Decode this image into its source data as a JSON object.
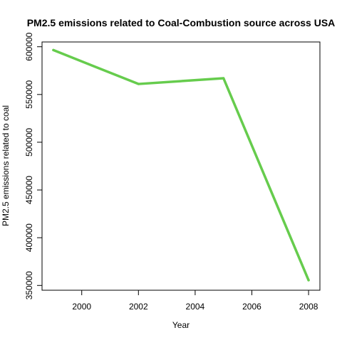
{
  "chart_data": {
    "type": "line",
    "title": "PM2.5 emissions related to Coal-Combustion source across USA",
    "xlabel": "Year",
    "ylabel": "PM2.5 emissions related to coal",
    "xlim": [
      1998.6,
      2008.4
    ],
    "ylim": [
      345000,
      605000
    ],
    "x_ticks": [
      2000,
      2002,
      2004,
      2006,
      2008
    ],
    "y_ticks": [
      350000,
      400000,
      450000,
      500000,
      550000,
      600000
    ],
    "x_tick_labels": [
      "2000",
      "2002",
      "2004",
      "2006",
      "2008"
    ],
    "y_tick_labels": [
      "350000",
      "400000",
      "450000",
      "500000",
      "550000",
      "600000"
    ],
    "grid": false,
    "series": [
      {
        "color": "#66cc4d",
        "x": [
          1999,
          2002,
          2005,
          2008
        ],
        "y": [
          596500,
          561000,
          567000,
          355500
        ]
      }
    ]
  }
}
